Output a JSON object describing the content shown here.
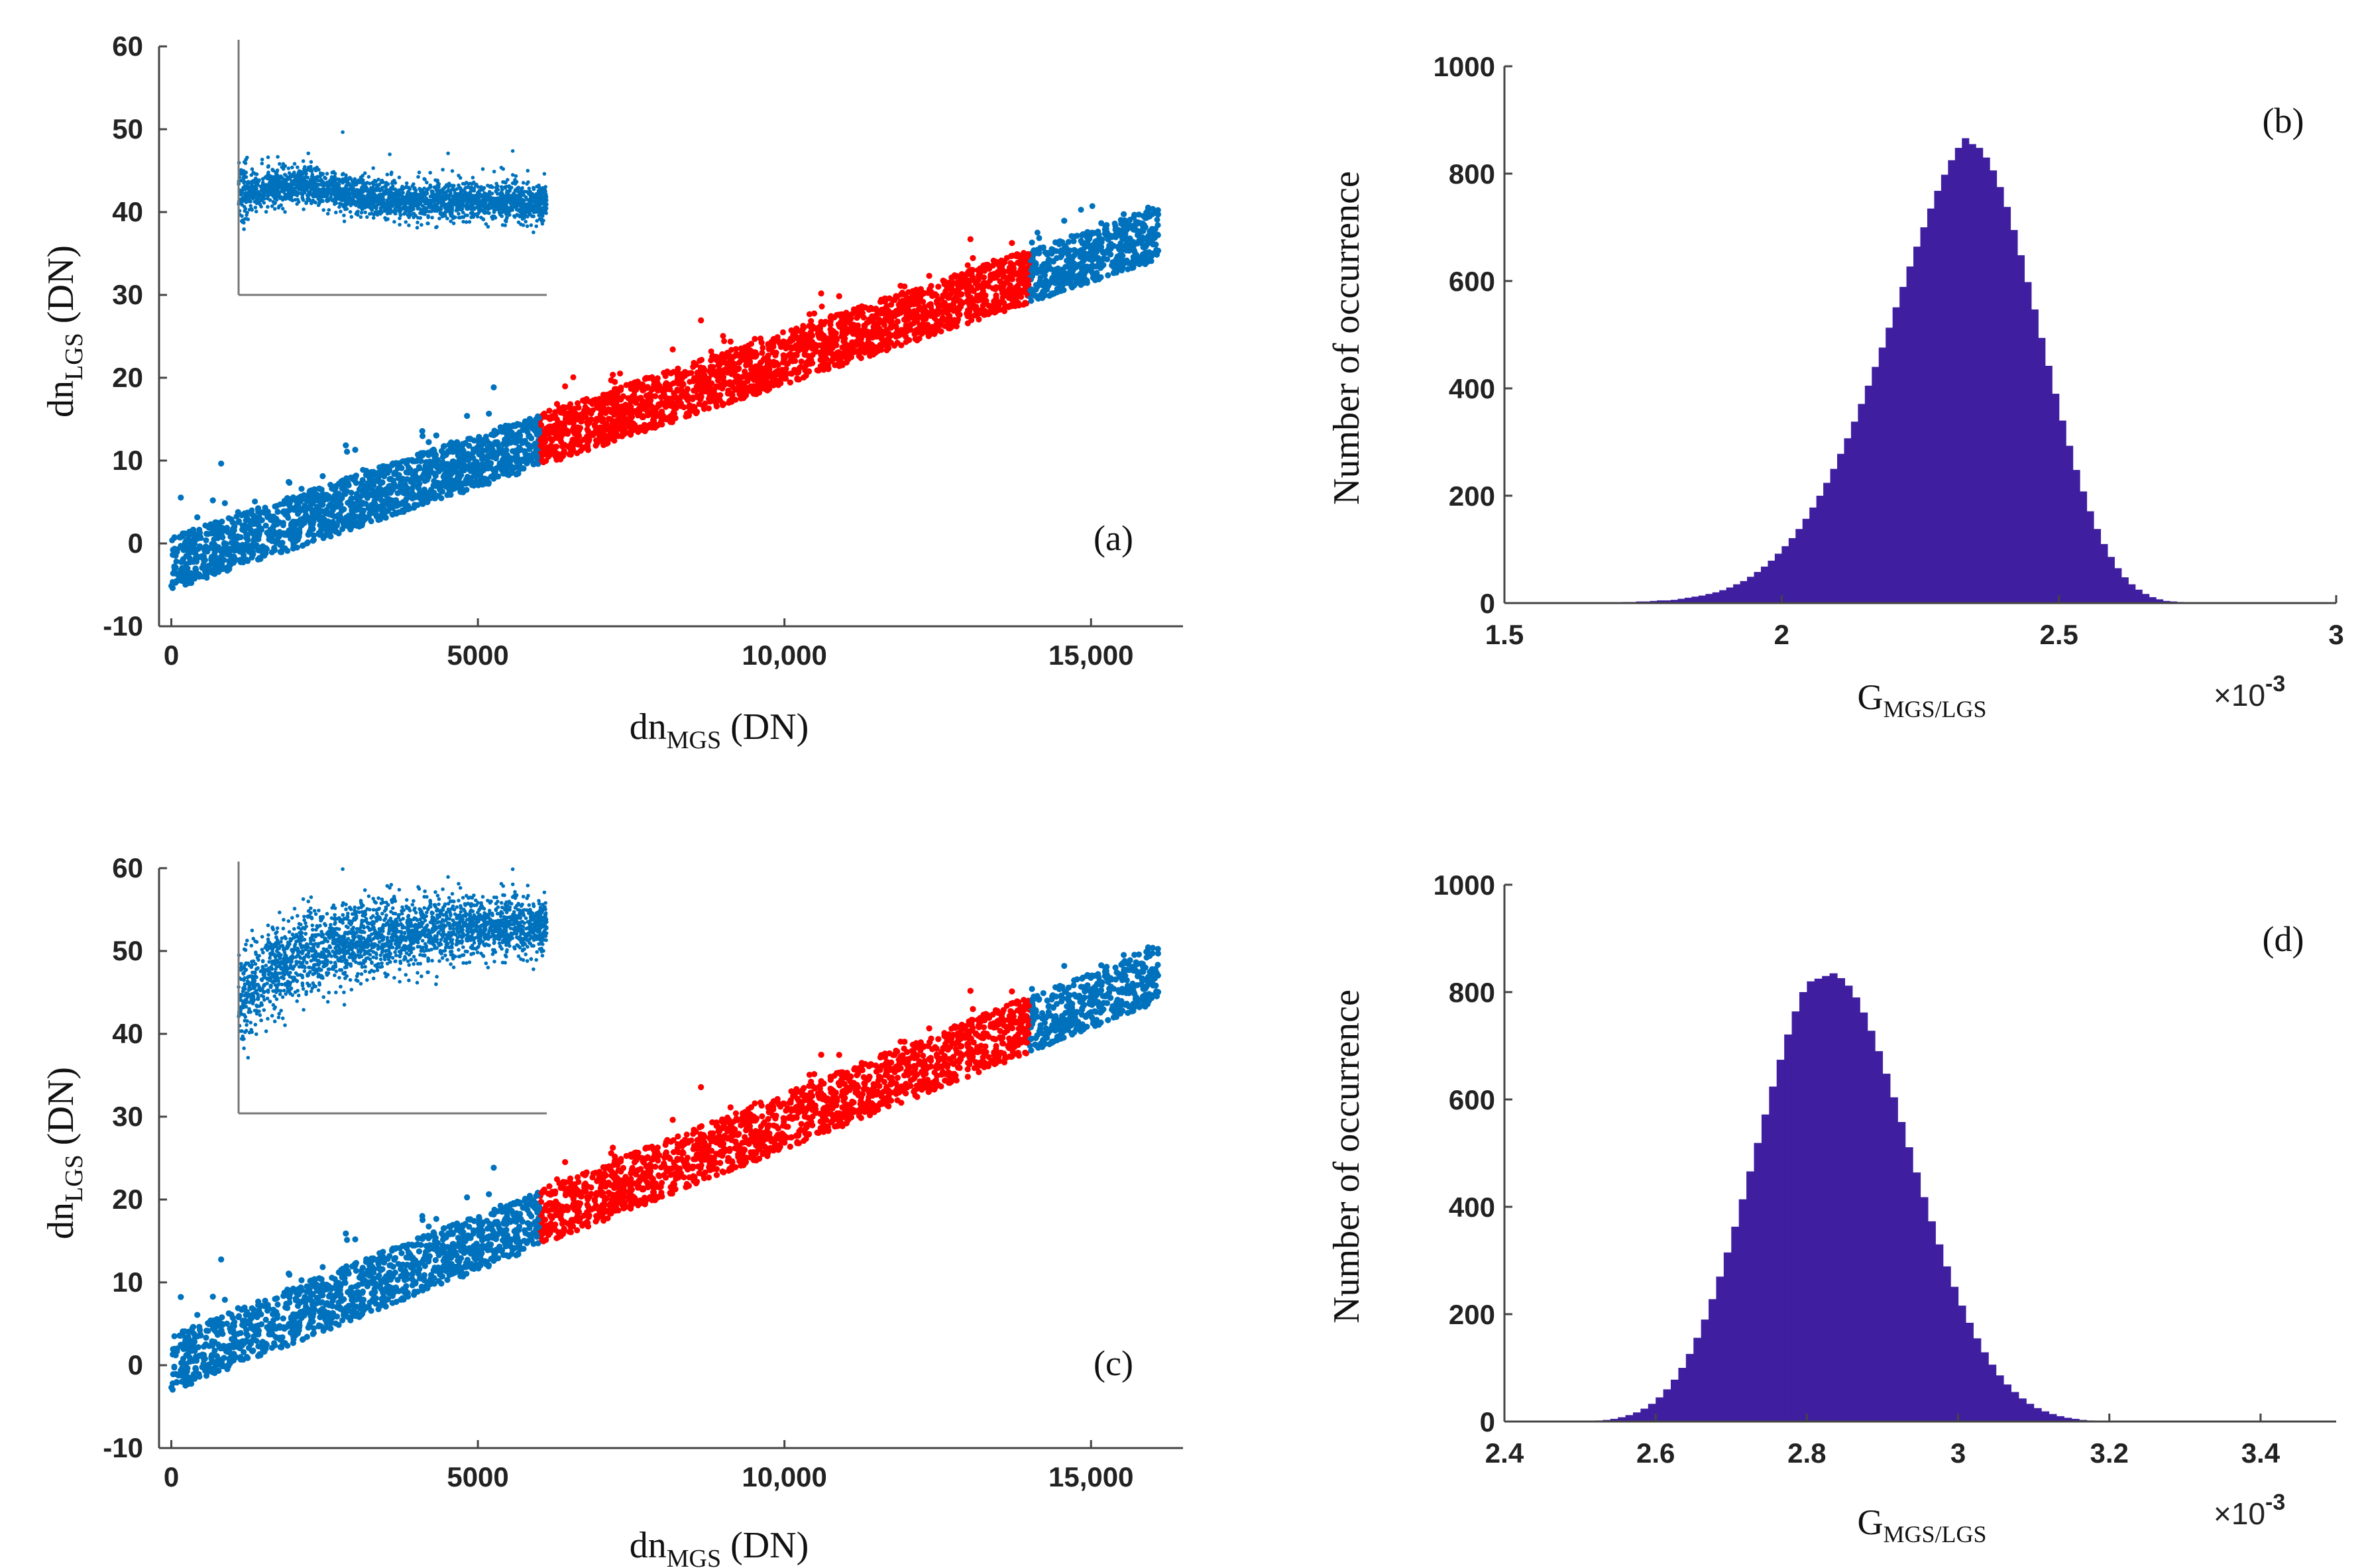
{
  "colors": {
    "scatter_outer": "#0072BD",
    "scatter_fit": "#FF0000",
    "histogram": "#3F1F9F"
  },
  "chart_data": [
    {
      "id": "a",
      "type": "scatter",
      "panel_label": "(a)",
      "xlabel": "dn",
      "xlabel_sub": "MGS",
      "xlabel_unit": " (DN)",
      "ylabel": "dn",
      "ylabel_sub": "LGS",
      "ylabel_unit": " (DN)",
      "xlim": [
        -200,
        16500
      ],
      "ylim": [
        -10,
        60
      ],
      "xticks": [
        0,
        5000,
        10000,
        15000
      ],
      "xtick_labels": [
        "0",
        "5000",
        "10,000",
        "15,000"
      ],
      "yticks": [
        -10,
        0,
        10,
        20,
        30,
        40,
        50,
        60
      ],
      "ytick_labels": [
        "-10",
        "0",
        "10",
        "20",
        "30",
        "40",
        "50",
        "60"
      ],
      "fit_range": [
        6000,
        14000
      ],
      "x_max": 16100,
      "trend": {
        "slope": 0.002475,
        "intercept": -2.4,
        "spread": 3.2
      },
      "inset": "flat"
    },
    {
      "id": "b",
      "type": "bar",
      "panel_label": "(b)",
      "xlabel": "G",
      "xlabel_sub": "MGS/LGS",
      "ylabel": "Number of occurrence",
      "xlim": [
        1.5,
        3.0
      ],
      "ylim": [
        0,
        1000
      ],
      "xticks": [
        1.5,
        2.0,
        2.5,
        3.0
      ],
      "xtick_labels": [
        "1.5",
        "2",
        "2.5",
        "3"
      ],
      "yticks": [
        0,
        200,
        400,
        600,
        800,
        1000
      ],
      "ytick_labels": [
        "0",
        "200",
        "400",
        "600",
        "800",
        "1000"
      ],
      "multiplier": "×10",
      "multiplier_exp": "-3",
      "bins": {
        "start": 1.6,
        "width": 0.0125,
        "counts": [
          1,
          1,
          1,
          1,
          1,
          1,
          1,
          1,
          1,
          2,
          2,
          3,
          3,
          4,
          5,
          5,
          6,
          8,
          10,
          12,
          14,
          17,
          20,
          24,
          29,
          35,
          41,
          49,
          58,
          68,
          79,
          92,
          106,
          121,
          138,
          157,
          178,
          200,
          224,
          250,
          278,
          307,
          338,
          371,
          405,
          440,
          476,
          513,
          551,
          589,
          627,
          664,
          700,
          735,
          768,
          798,
          825,
          848,
          866,
          855,
          848,
          830,
          806,
          775,
          738,
          695,
          648,
          598,
          547,
          494,
          442,
          390,
          340,
          293,
          248,
          208,
          171,
          138,
          110,
          86,
          65,
          48,
          35,
          25,
          17,
          11,
          7,
          4,
          3,
          2,
          1
        ]
      }
    },
    {
      "id": "c",
      "type": "scatter",
      "panel_label": "(c)",
      "xlabel": "dn",
      "xlabel_sub": "MGS",
      "xlabel_unit": " (DN)",
      "ylabel": "dn",
      "ylabel_sub": "LGS",
      "ylabel_unit": " (DN)",
      "xlim": [
        -200,
        16500
      ],
      "ylim": [
        -10,
        60
      ],
      "xticks": [
        0,
        5000,
        10000,
        15000
      ],
      "xtick_labels": [
        "0",
        "5000",
        "10,000",
        "15,000"
      ],
      "yticks": [
        -10,
        0,
        10,
        20,
        30,
        40,
        50,
        60
      ],
      "ytick_labels": [
        "-10",
        "0",
        "10",
        "20",
        "30",
        "40",
        "50",
        "60"
      ],
      "fit_range": [
        6000,
        14000
      ],
      "x_max": 16100,
      "trend": {
        "slope": 0.002925,
        "intercept": 0.2,
        "spread": 3.4
      },
      "inset": "curved"
    },
    {
      "id": "d",
      "type": "bar",
      "panel_label": "(d)",
      "xlabel": "G",
      "xlabel_sub": "MGS/LGS",
      "ylabel": "Number of occurrence",
      "xlim": [
        2.4,
        3.5
      ],
      "ylim": [
        0,
        1000
      ],
      "xticks": [
        2.4,
        2.6,
        2.8,
        3.0,
        3.2,
        3.4
      ],
      "xtick_labels": [
        "2.4",
        "2.6",
        "2.8",
        "3",
        "3.2",
        "3.4"
      ],
      "yticks": [
        0,
        200,
        400,
        600,
        800,
        1000
      ],
      "ytick_labels": [
        "0",
        "200",
        "400",
        "600",
        "800",
        "1000"
      ],
      "multiplier": "×10",
      "multiplier_exp": "-3",
      "bins": {
        "start": 2.5,
        "width": 0.01,
        "counts": [
          1,
          1,
          2,
          3,
          5,
          8,
          12,
          17,
          24,
          33,
          45,
          60,
          78,
          100,
          126,
          156,
          190,
          228,
          270,
          315,
          363,
          414,
          466,
          519,
          572,
          624,
          674,
          721,
          764,
          800,
          820,
          825,
          830,
          835,
          826,
          812,
          790,
          762,
          728,
          690,
          648,
          604,
          558,
          511,
          464,
          418,
          373,
          330,
          289,
          251,
          216,
          184,
          155,
          129,
          106,
          86,
          69,
          55,
          43,
          33,
          25,
          19,
          14,
          10,
          7,
          5,
          3,
          2,
          1,
          1
        ]
      }
    }
  ]
}
